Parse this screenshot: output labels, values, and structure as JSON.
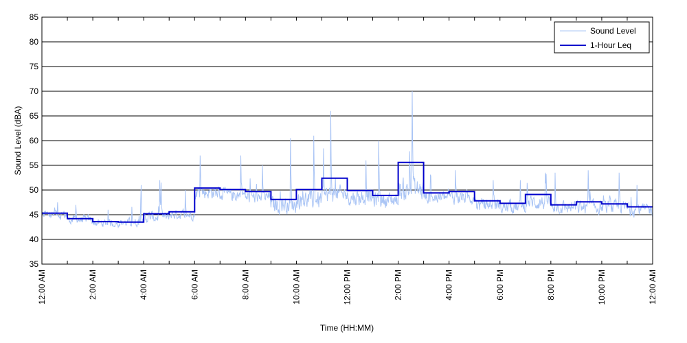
{
  "chart_data": {
    "type": "line",
    "title": "",
    "xlabel": "Time (HH:MM)",
    "ylabel": "Sound Level (dBA)",
    "ylim": [
      35,
      85
    ],
    "yticks": [
      35,
      40,
      45,
      50,
      55,
      60,
      65,
      70,
      75,
      80,
      85
    ],
    "xlim_hours": [
      0,
      24
    ],
    "xtick_labels": [
      "12:00 AM",
      "2:00 AM",
      "4:00 AM",
      "6:00 AM",
      "8:00 AM",
      "10:00 AM",
      "12:00 PM",
      "2:00 PM",
      "4:00 PM",
      "6:00 PM",
      "8:00 PM",
      "10:00 PM",
      "12:00 AM"
    ],
    "grid": "horizontal",
    "legend_position": "top-right",
    "colors": {
      "sound_level": "#a9c4f5",
      "leq": "#0000cc"
    },
    "series": [
      {
        "name": "Sound Level",
        "style": "thin light-blue line",
        "hourly_profile": [
          {
            "hour": 0,
            "mean": 45.0,
            "spread": 1.5,
            "peak": 47.5
          },
          {
            "hour": 1,
            "mean": 44.0,
            "spread": 1.3,
            "peak": 47.0
          },
          {
            "hour": 2,
            "mean": 43.3,
            "spread": 1.2,
            "peak": 46.0
          },
          {
            "hour": 3,
            "mean": 43.4,
            "spread": 1.3,
            "peak": 51.0
          },
          {
            "hour": 4,
            "mean": 44.5,
            "spread": 1.8,
            "peak": 52.0
          },
          {
            "hour": 5,
            "mean": 45.0,
            "spread": 1.4,
            "peak": 50.0
          },
          {
            "hour": 6,
            "mean": 49.5,
            "spread": 2.0,
            "peak": 57.0
          },
          {
            "hour": 7,
            "mean": 49.0,
            "spread": 2.0,
            "peak": 57.0
          },
          {
            "hour": 8,
            "mean": 48.5,
            "spread": 2.0,
            "peak": 55.0
          },
          {
            "hour": 9,
            "mean": 47.0,
            "spread": 2.5,
            "peak": 60.5
          },
          {
            "hour": 10,
            "mean": 48.0,
            "spread": 2.8,
            "peak": 61.0
          },
          {
            "hour": 11,
            "mean": 49.0,
            "spread": 2.8,
            "peak": 66.0
          },
          {
            "hour": 12,
            "mean": 48.5,
            "spread": 2.5,
            "peak": 56.0
          },
          {
            "hour": 13,
            "mean": 48.0,
            "spread": 2.5,
            "peak": 60.0
          },
          {
            "hour": 14,
            "mean": 50.0,
            "spread": 3.5,
            "peak": 70.0
          },
          {
            "hour": 15,
            "mean": 48.5,
            "spread": 2.0,
            "peak": 53.0
          },
          {
            "hour": 16,
            "mean": 48.5,
            "spread": 2.0,
            "peak": 54.0
          },
          {
            "hour": 17,
            "mean": 47.0,
            "spread": 2.0,
            "peak": 52.0
          },
          {
            "hour": 18,
            "mean": 46.5,
            "spread": 2.0,
            "peak": 52.0
          },
          {
            "hour": 19,
            "mean": 47.5,
            "spread": 2.3,
            "peak": 53.5
          },
          {
            "hour": 20,
            "mean": 46.5,
            "spread": 2.0,
            "peak": 53.5
          },
          {
            "hour": 21,
            "mean": 46.5,
            "spread": 2.2,
            "peak": 54.0
          },
          {
            "hour": 22,
            "mean": 46.5,
            "spread": 2.0,
            "peak": 53.5
          },
          {
            "hour": 23,
            "mean": 46.0,
            "spread": 2.0,
            "peak": 51.0
          }
        ]
      },
      {
        "name": "1-Hour Leq",
        "style": "thick dark-blue step line",
        "x_hours": [
          0,
          1,
          2,
          3,
          4,
          5,
          6,
          7,
          8,
          9,
          10,
          11,
          12,
          13,
          14,
          15,
          16,
          17,
          18,
          19,
          20,
          21,
          22,
          23
        ],
        "values": [
          45.3,
          44.2,
          43.6,
          43.5,
          45.2,
          45.6,
          50.4,
          50.1,
          49.7,
          48.1,
          50.1,
          52.4,
          49.9,
          48.9,
          55.6,
          49.4,
          49.7,
          47.8,
          47.3,
          49.1,
          47.0,
          47.6,
          47.2,
          46.6
        ]
      }
    ]
  }
}
